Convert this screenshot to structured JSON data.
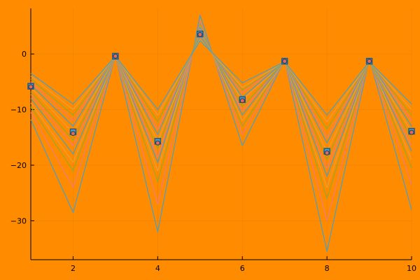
{
  "chart_data": {
    "type": "line",
    "title": "",
    "xlabel": "",
    "ylabel": "",
    "xlim": [
      1,
      10
    ],
    "ylim": [
      -37,
      8.2
    ],
    "grid": true,
    "legend": "none",
    "x": [
      1,
      2,
      3,
      4,
      5,
      6,
      7,
      8,
      9,
      10
    ],
    "x_ticks": [
      2,
      4,
      6,
      8,
      10
    ],
    "y_ticks": [
      0,
      -10,
      -20,
      -30
    ],
    "colors": {
      "background": "#ff8c00",
      "grid": "#e07a00",
      "lines": [
        "#4a9fc4",
        "#f07a78",
        "#9aa52a",
        "#e8a03a",
        "#4a9fc4",
        "#f07a78",
        "#9aa52a",
        "#e8a03a",
        "#4a9fc4",
        "#f07a78",
        "#9aa52a",
        "#e8a03a",
        "#4a9fc4"
      ],
      "marker_square": "#1f5a8a",
      "marker_circle": "#e06a5a"
    },
    "series": [
      {
        "values": [
          -11.8,
          -28.5,
          -0.3,
          -32.0,
          7.0,
          -16.5,
          -1.0,
          -35.5,
          -0.8,
          -28.0
        ]
      },
      {
        "values": [
          -10.5,
          -24.0,
          -0.4,
          -27.0,
          6.0,
          -14.5,
          -1.1,
          -30.0,
          -1.0,
          -23.5
        ]
      },
      {
        "values": [
          -9.5,
          -21.0,
          -0.4,
          -23.0,
          5.5,
          -13.0,
          -1.1,
          -26.0,
          -1.1,
          -20.5
        ]
      },
      {
        "values": [
          -8.8,
          -19.5,
          -0.4,
          -21.0,
          5.0,
          -12.0,
          -1.2,
          -24.0,
          -1.1,
          -19.0
        ]
      },
      {
        "values": [
          -8.0,
          -18.0,
          -0.4,
          -19.5,
          4.8,
          -11.0,
          -1.2,
          -22.0,
          -1.2,
          -17.5
        ]
      },
      {
        "values": [
          -7.3,
          -16.5,
          -0.4,
          -18.5,
          4.5,
          -10.2,
          -1.2,
          -20.5,
          -1.2,
          -16.5
        ]
      },
      {
        "values": [
          -6.8,
          -15.5,
          -0.4,
          -17.0,
          4.2,
          -9.5,
          -1.3,
          -19.0,
          -1.3,
          -15.2
        ]
      },
      {
        "values": [
          -6.0,
          -14.2,
          -0.4,
          -15.8,
          3.7,
          -8.3,
          -1.3,
          -17.6,
          -1.3,
          -14.0
        ]
      },
      {
        "values": [
          -5.5,
          -13.0,
          -0.4,
          -14.5,
          3.4,
          -7.8,
          -1.3,
          -16.0,
          -1.3,
          -13.0
        ]
      },
      {
        "values": [
          -5.0,
          -12.0,
          -0.4,
          -13.5,
          3.0,
          -7.0,
          -1.3,
          -15.0,
          -1.3,
          -12.0
        ]
      },
      {
        "values": [
          -4.5,
          -11.0,
          -0.4,
          -12.2,
          2.8,
          -6.5,
          -1.4,
          -13.5,
          -1.4,
          -11.0
        ]
      },
      {
        "values": [
          -4.0,
          -10.0,
          -0.4,
          -11.0,
          2.6,
          -6.0,
          -1.4,
          -12.2,
          -1.4,
          -10.0
        ]
      },
      {
        "values": [
          -3.5,
          -9.0,
          -0.4,
          -10.0,
          2.4,
          -5.2,
          -1.4,
          -11.0,
          -1.4,
          -9.0
        ]
      }
    ],
    "markers": {
      "squares": [
        -5.8,
        -14.0,
        -0.4,
        -15.7,
        3.6,
        -8.2,
        -1.3,
        -17.5,
        -1.3,
        -13.9
      ],
      "circles": [
        -5.9,
        -14.3,
        -0.4,
        -16.0,
        3.5,
        -8.4,
        -1.3,
        -17.8,
        -1.3,
        -14.1
      ]
    }
  }
}
